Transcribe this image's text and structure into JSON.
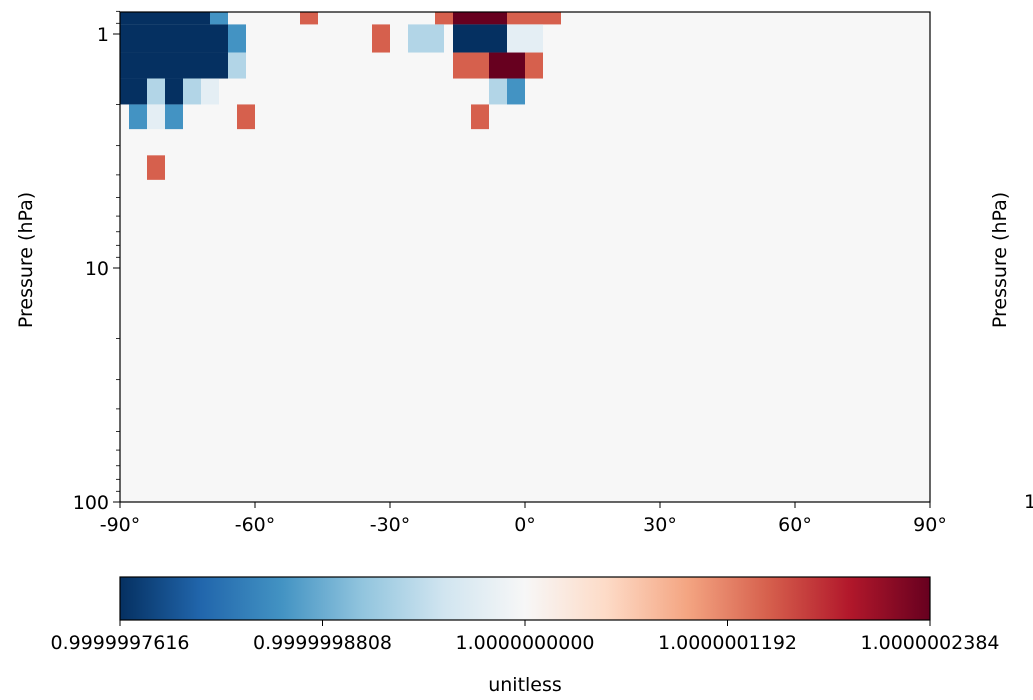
{
  "chart_data": [
    {
      "type": "heatmap",
      "title": "",
      "xlabel": "",
      "ylabel": "Pressure (hPa)",
      "xlim": [
        -90,
        90
      ],
      "ylim": [
        100,
        0.8
      ],
      "y_scale": "log",
      "x_ticks": [
        -90,
        -60,
        -30,
        0,
        30,
        60,
        90
      ],
      "x_tick_labels": [
        "-90°",
        "-60°",
        "-30°",
        "0°",
        "30°",
        "60°",
        "90°"
      ],
      "y_ticks": [
        1,
        10,
        100
      ],
      "y_tick_labels": [
        "1",
        "10",
        "100"
      ],
      "grid": false,
      "background_value": 1.0,
      "cells_note": "values: -1 = 0.9999997616, -0.6 = 0.9999998328, -0.3 = 0.9999999285, -0.1 = 0.9999999762, 0 = 1.0, 0.6 = 1.0000001430, 1 = 1.0000002384",
      "cells": [
        {
          "lat0": -90,
          "lat1": -70,
          "p0": 0.8,
          "p1": 0.91,
          "value": -1
        },
        {
          "lat0": -70,
          "lat1": -66,
          "p0": 0.8,
          "p1": 0.91,
          "value": -0.6
        },
        {
          "lat0": -50,
          "lat1": -46,
          "p0": 0.8,
          "p1": 0.91,
          "value": 0.6
        },
        {
          "lat0": -20,
          "lat1": -16,
          "p0": 0.8,
          "p1": 0.91,
          "value": 0.6
        },
        {
          "lat0": -16,
          "lat1": -4,
          "p0": 0.8,
          "p1": 0.91,
          "value": 1
        },
        {
          "lat0": -4,
          "lat1": 8,
          "p0": 0.8,
          "p1": 0.91,
          "value": 0.6
        },
        {
          "lat0": -90,
          "lat1": -66,
          "p0": 0.91,
          "p1": 1.2,
          "value": -1
        },
        {
          "lat0": -66,
          "lat1": -62,
          "p0": 0.91,
          "p1": 1.2,
          "value": -0.6
        },
        {
          "lat0": -34,
          "lat1": -30,
          "p0": 0.91,
          "p1": 1.2,
          "value": 0.6
        },
        {
          "lat0": -26,
          "lat1": -18,
          "p0": 0.91,
          "p1": 1.2,
          "value": -0.3
        },
        {
          "lat0": -16,
          "lat1": -4,
          "p0": 0.91,
          "p1": 1.2,
          "value": -1
        },
        {
          "lat0": -4,
          "lat1": 4,
          "p0": 0.91,
          "p1": 1.2,
          "value": -0.1
        },
        {
          "lat0": -90,
          "lat1": -66,
          "p0": 1.2,
          "p1": 1.55,
          "value": -1
        },
        {
          "lat0": -66,
          "lat1": -62,
          "p0": 1.2,
          "p1": 1.55,
          "value": -0.3
        },
        {
          "lat0": -16,
          "lat1": -8,
          "p0": 1.2,
          "p1": 1.55,
          "value": 0.6
        },
        {
          "lat0": -8,
          "lat1": 0,
          "p0": 1.2,
          "p1": 1.55,
          "value": 1
        },
        {
          "lat0": 0,
          "lat1": 4,
          "p0": 1.2,
          "p1": 1.55,
          "value": 0.6
        },
        {
          "lat0": -90,
          "lat1": -84,
          "p0": 1.55,
          "p1": 2.0,
          "value": -1
        },
        {
          "lat0": -84,
          "lat1": -80,
          "p0": 1.55,
          "p1": 2.0,
          "value": -0.3
        },
        {
          "lat0": -80,
          "lat1": -76,
          "p0": 1.55,
          "p1": 2.0,
          "value": -1
        },
        {
          "lat0": -76,
          "lat1": -72,
          "p0": 1.55,
          "p1": 2.0,
          "value": -0.3
        },
        {
          "lat0": -72,
          "lat1": -68,
          "p0": 1.55,
          "p1": 2.0,
          "value": -0.1
        },
        {
          "lat0": -8,
          "lat1": -4,
          "p0": 1.55,
          "p1": 2.0,
          "value": -0.3
        },
        {
          "lat0": -4,
          "lat1": 0,
          "p0": 1.55,
          "p1": 2.0,
          "value": -0.6
        },
        {
          "lat0": -88,
          "lat1": -84,
          "p0": 2.0,
          "p1": 2.55,
          "value": -0.6
        },
        {
          "lat0": -84,
          "lat1": -80,
          "p0": 2.0,
          "p1": 2.55,
          "value": -0.1
        },
        {
          "lat0": -80,
          "lat1": -76,
          "p0": 2.0,
          "p1": 2.55,
          "value": -0.6
        },
        {
          "lat0": -64,
          "lat1": -60,
          "p0": 2.0,
          "p1": 2.55,
          "value": 0.6
        },
        {
          "lat0": -12,
          "lat1": -8,
          "p0": 2.0,
          "p1": 2.55,
          "value": 0.6
        },
        {
          "lat0": -84,
          "lat1": -80,
          "p0": 3.3,
          "p1": 4.2,
          "value": 0.6
        }
      ]
    }
  ],
  "colorbar": {
    "label": "unitless",
    "ticks": [
      "0.9999997616",
      "0.9999998808",
      "1.0000000000",
      "1.0000001192",
      "1.0000002384"
    ],
    "colormap": [
      "#053061",
      "#2166ac",
      "#4393c3",
      "#92c5de",
      "#d1e5f0",
      "#f7f7f7",
      "#fddbc7",
      "#f4a582",
      "#d6604d",
      "#b2182b",
      "#67001f"
    ]
  },
  "right_panel": {
    "ylabel": "Pressure (hPa)",
    "tick_fragment": "1"
  }
}
